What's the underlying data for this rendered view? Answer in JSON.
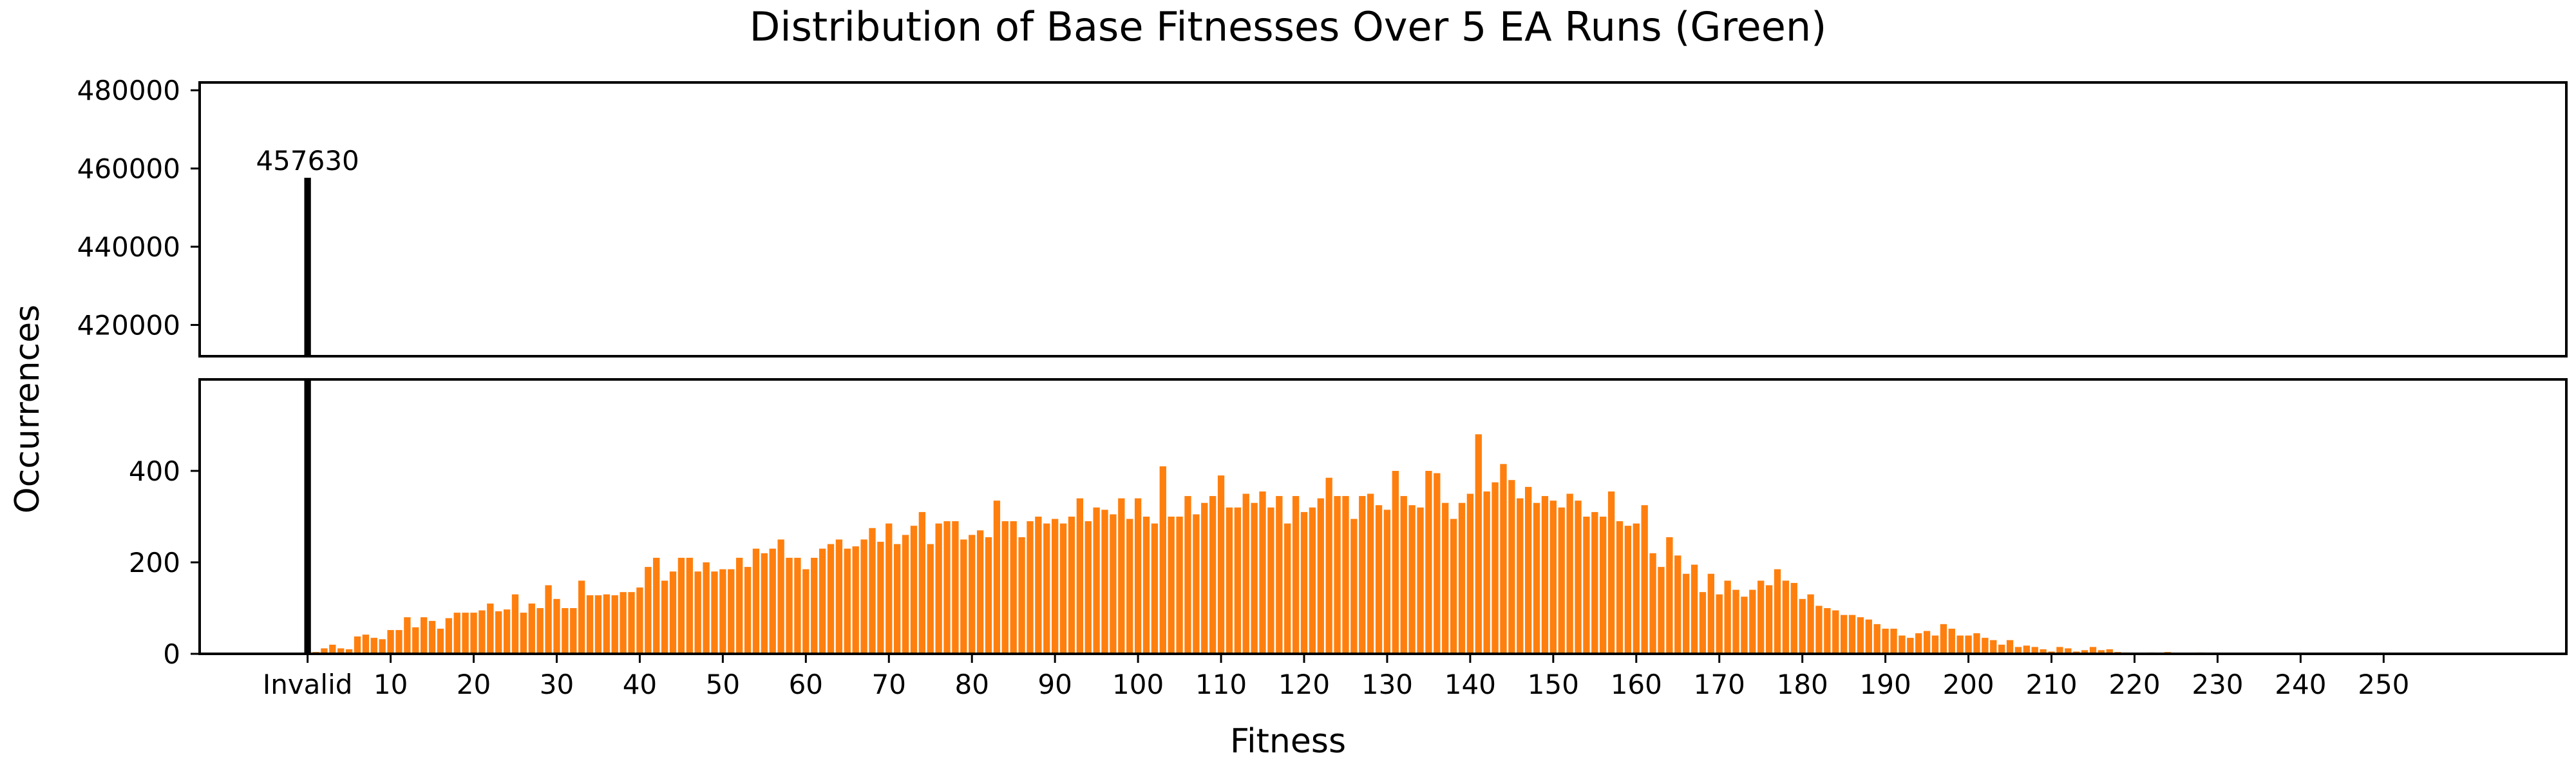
{
  "colors": {
    "invalid": "#000000",
    "bars": "#ff7f0e",
    "axis": "#000000",
    "background": "#ffffff"
  },
  "chart_data": {
    "type": "bar",
    "title": "Distribution of Base Fitnesses Over 5 EA Runs (Green)",
    "xlabel": "Fitness",
    "ylabel": "Occurrences",
    "broken_axis": true,
    "grid": false,
    "legend": "none",
    "invalid": {
      "label": "Invalid",
      "value": 457630,
      "annotation": "457630"
    },
    "upper_panel": {
      "ylim": [
        412000,
        482000
      ],
      "yticks": [
        420000,
        440000,
        460000,
        480000
      ],
      "ytick_labels": [
        "420000",
        "440000",
        "460000",
        "480000"
      ]
    },
    "lower_panel": {
      "ylim": [
        0,
        600
      ],
      "yticks": [
        0,
        200,
        400
      ],
      "ytick_labels": [
        "0",
        "200",
        "400"
      ]
    },
    "xlim": [
      -13,
      272
    ],
    "xticks": [
      0,
      10,
      20,
      30,
      40,
      50,
      60,
      70,
      80,
      90,
      100,
      110,
      120,
      130,
      140,
      150,
      160,
      170,
      180,
      190,
      200,
      210,
      220,
      230,
      240,
      250
    ],
    "xtick_labels": [
      "Invalid",
      "10",
      "20",
      "30",
      "40",
      "50",
      "60",
      "70",
      "80",
      "90",
      "100",
      "110",
      "120",
      "130",
      "140",
      "150",
      "160",
      "170",
      "180",
      "190",
      "200",
      "210",
      "220",
      "230",
      "240",
      "250"
    ],
    "series": [
      {
        "x_start": 1,
        "values": [
          4,
          12,
          20,
          12,
          10,
          38,
          42,
          35,
          32,
          52,
          52,
          80,
          58,
          80,
          72,
          55,
          78,
          90,
          90,
          90,
          95,
          110,
          93,
          97,
          130,
          90,
          110,
          100,
          150,
          120,
          100,
          100,
          160,
          128,
          128,
          130,
          128,
          135,
          135,
          145,
          190,
          210,
          160,
          180,
          210,
          210,
          180,
          200,
          180,
          185,
          185,
          210,
          190,
          230,
          220,
          230,
          250,
          210,
          210,
          185,
          210,
          230,
          240,
          250,
          230,
          235,
          250,
          275,
          245,
          285,
          240,
          260,
          280,
          310,
          240,
          285,
          290,
          290,
          250,
          260,
          270,
          255,
          335,
          290,
          290,
          255,
          290,
          300,
          285,
          295,
          285,
          300,
          340,
          290,
          320,
          315,
          305,
          340,
          295,
          340,
          300,
          285,
          410,
          300,
          300,
          345,
          305,
          330,
          345,
          390,
          320,
          320,
          350,
          330,
          355,
          320,
          345,
          285,
          345,
          310,
          320,
          340,
          385,
          345,
          345,
          295,
          345,
          350,
          325,
          315,
          400,
          345,
          325,
          320,
          400,
          395,
          330,
          295,
          330,
          350,
          480,
          355,
          375,
          415,
          380,
          340,
          365,
          330,
          345,
          335,
          320,
          350,
          335,
          300,
          310,
          300,
          355,
          290,
          280,
          285,
          325,
          220,
          190,
          255,
          215,
          175,
          195,
          135,
          175,
          130,
          160,
          140,
          125,
          140,
          160,
          150,
          185,
          160,
          155,
          120,
          130,
          105,
          100,
          95,
          85,
          85,
          80,
          75,
          65,
          55,
          55,
          40,
          35,
          45,
          50,
          40,
          65,
          55,
          40,
          40,
          45,
          35,
          30,
          20,
          30,
          15,
          18,
          15,
          10,
          5,
          15,
          12,
          5,
          8,
          15,
          8,
          10,
          4,
          3,
          2,
          2,
          3,
          2,
          4,
          2,
          2,
          2,
          3,
          1,
          1,
          1,
          1,
          1,
          1,
          1,
          1,
          1,
          0,
          0,
          0,
          0,
          0,
          0,
          0,
          0,
          0,
          0,
          0,
          0,
          0,
          0,
          0,
          0,
          0,
          0,
          0,
          0,
          0,
          0,
          0,
          0,
          0,
          0,
          0,
          0,
          0,
          0
        ]
      }
    ]
  }
}
